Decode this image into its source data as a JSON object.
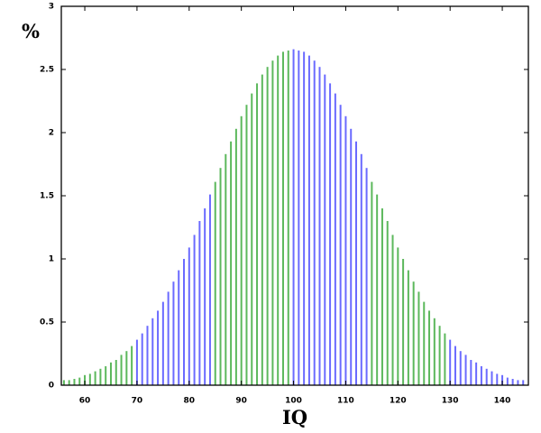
{
  "chart_data": {
    "type": "bar",
    "x_label": "IQ",
    "y_label": "%",
    "x": [
      56,
      57,
      58,
      59,
      60,
      61,
      62,
      63,
      64,
      65,
      66,
      67,
      68,
      69,
      70,
      71,
      72,
      73,
      74,
      75,
      76,
      77,
      78,
      79,
      80,
      81,
      82,
      83,
      84,
      85,
      86,
      87,
      88,
      89,
      90,
      91,
      92,
      93,
      94,
      95,
      96,
      97,
      98,
      99,
      100,
      101,
      102,
      103,
      104,
      105,
      106,
      107,
      108,
      109,
      110,
      111,
      112,
      113,
      114,
      115,
      116,
      117,
      118,
      119,
      120,
      121,
      122,
      123,
      124,
      125,
      126,
      127,
      128,
      129,
      130,
      131,
      132,
      133,
      134,
      135,
      136,
      137,
      138,
      139,
      140,
      141,
      142,
      143,
      144
    ],
    "values": [
      0.04,
      0.04,
      0.05,
      0.06,
      0.08,
      0.09,
      0.11,
      0.13,
      0.15,
      0.18,
      0.2,
      0.24,
      0.27,
      0.31,
      0.36,
      0.41,
      0.47,
      0.53,
      0.59,
      0.66,
      0.74,
      0.82,
      0.91,
      1.0,
      1.09,
      1.19,
      1.3,
      1.4,
      1.51,
      1.61,
      1.72,
      1.83,
      1.93,
      2.03,
      2.13,
      2.22,
      2.31,
      2.39,
      2.46,
      2.52,
      2.57,
      2.61,
      2.64,
      2.65,
      2.66,
      2.65,
      2.64,
      2.61,
      2.57,
      2.52,
      2.46,
      2.39,
      2.31,
      2.22,
      2.13,
      2.03,
      1.93,
      1.83,
      1.72,
      1.61,
      1.51,
      1.4,
      1.3,
      1.19,
      1.09,
      1.0,
      0.91,
      0.82,
      0.74,
      0.66,
      0.59,
      0.53,
      0.47,
      0.41,
      0.36,
      0.31,
      0.27,
      0.24,
      0.2,
      0.18,
      0.15,
      0.13,
      0.11,
      0.09,
      0.08,
      0.06,
      0.05,
      0.04,
      0.04
    ],
    "colors": [
      "#5cb85c",
      "#5cb85c",
      "#5cb85c",
      "#5cb85c",
      "#5cb85c",
      "#5cb85c",
      "#5cb85c",
      "#5cb85c",
      "#5cb85c",
      "#5cb85c",
      "#5cb85c",
      "#5cb85c",
      "#5cb85c",
      "#5cb85c",
      "#6a6aff",
      "#6a6aff",
      "#6a6aff",
      "#6a6aff",
      "#6a6aff",
      "#6a6aff",
      "#6a6aff",
      "#6a6aff",
      "#6a6aff",
      "#6a6aff",
      "#6a6aff",
      "#6a6aff",
      "#6a6aff",
      "#6a6aff",
      "#6a6aff",
      "#5cb85c",
      "#5cb85c",
      "#5cb85c",
      "#5cb85c",
      "#5cb85c",
      "#5cb85c",
      "#5cb85c",
      "#5cb85c",
      "#5cb85c",
      "#5cb85c",
      "#5cb85c",
      "#5cb85c",
      "#5cb85c",
      "#5cb85c",
      "#5cb85c",
      "#6a6aff",
      "#6a6aff",
      "#6a6aff",
      "#6a6aff",
      "#6a6aff",
      "#6a6aff",
      "#6a6aff",
      "#6a6aff",
      "#6a6aff",
      "#6a6aff",
      "#6a6aff",
      "#6a6aff",
      "#6a6aff",
      "#6a6aff",
      "#6a6aff",
      "#5cb85c",
      "#5cb85c",
      "#5cb85c",
      "#5cb85c",
      "#5cb85c",
      "#5cb85c",
      "#5cb85c",
      "#5cb85c",
      "#5cb85c",
      "#5cb85c",
      "#5cb85c",
      "#5cb85c",
      "#5cb85c",
      "#5cb85c",
      "#5cb85c",
      "#6a6aff",
      "#6a6aff",
      "#6a6aff",
      "#6a6aff",
      "#6a6aff",
      "#6a6aff",
      "#6a6aff",
      "#6a6aff",
      "#6a6aff",
      "#6a6aff",
      "#6a6aff",
      "#6a6aff",
      "#6a6aff",
      "#6a6aff",
      "#6a6aff"
    ],
    "xlim": [
      55.5,
      145
    ],
    "xticks": [
      60,
      70,
      80,
      90,
      100,
      110,
      120,
      130,
      140
    ],
    "ylim": [
      0,
      3
    ],
    "yticks": [
      0,
      0.5,
      1,
      1.5,
      2,
      2.5,
      3
    ]
  }
}
